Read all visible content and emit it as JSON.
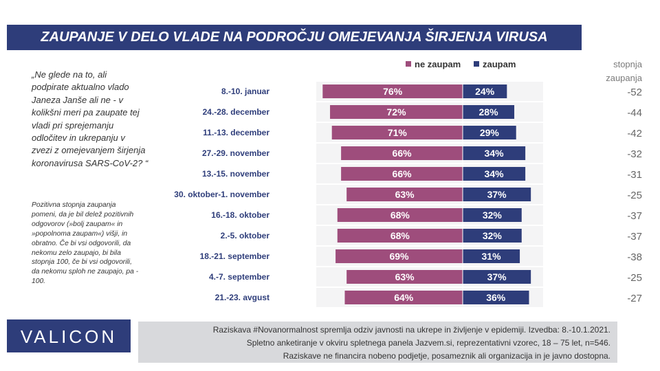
{
  "title": "ZAUPANJE V DELO VLADE NA PODROČJU OMEJEVANJA ŠIRJENJA VIRUSA",
  "index_header": [
    "stopnja",
    "zaupanja"
  ],
  "question_lines": [
    "„Ne glede na to, ali",
    "podpirate aktualno vlado",
    "Janeza Janše ali ne - v",
    "kolikšni meri pa zaupate tej",
    "vladi pri sprejemanju",
    "odločitev in ukrepanju v",
    "zvezi z omejevanjem širjenja",
    "koronavirusa SARS-CoV-2? “"
  ],
  "note_lines": [
    "Pozitivna stopnja zaupanja",
    "pomeni, da je bil delež pozitivnih",
    "odgovorov (»bolj zaupam« in",
    "»popolnoma zaupam«) višji, in",
    "obratno. Če bi vsi odgovorili, da",
    "nekomu zelo zaupajo, bi bila",
    "stopnja 100, če bi vsi odgovorili,",
    "da nekomu sploh ne zaupajo, pa -",
    "100."
  ],
  "logo": "VALICON",
  "footer": [
    "Raziskava #Novanormalnost spremlja odziv javnosti na ukrepe in življenje v epidemiji.  Izvedba: 8.-10.1.2021.",
    "Spletno anketiranje v okviru spletnega panela Jazvem.si, reprezentativni vzorec, 18 – 75 let, n=546.",
    "Raziskave ne financira nobeno podjetje, posameznik ali organizacija in je javno dostopna."
  ],
  "colors": {
    "ne_zaupam": "#9e4d7c",
    "zaupam": "#2e3d7a",
    "title_bg": "#2e3d7a",
    "footer_bg": "#d8d9dc"
  },
  "chart_data": {
    "type": "bar",
    "orientation": "horizontal-diverging",
    "categories": [
      "8.-10. januar",
      "24.-28. december",
      "11.-13. december",
      "27.-29. november",
      "13.-15. november",
      "30. oktober-1. november",
      "16.-18. oktober",
      "2.-5. oktober",
      "18.-21. september",
      "4.-7. september",
      "21.-23. avgust"
    ],
    "series": [
      {
        "name": "ne zaupam",
        "values": [
          76,
          72,
          71,
          66,
          66,
          63,
          68,
          68,
          69,
          63,
          64
        ],
        "labels": [
          "76%",
          "72%",
          "71%",
          "66%",
          "66%",
          "63%",
          "68%",
          "68%",
          "69%",
          "63%",
          "64%"
        ]
      },
      {
        "name": "zaupam",
        "values": [
          24,
          28,
          29,
          34,
          34,
          37,
          32,
          32,
          31,
          37,
          36
        ],
        "labels": [
          "24%",
          "28%",
          "29%",
          "34%",
          "34%",
          "37%",
          "32%",
          "32%",
          "31%",
          "37%",
          "36%"
        ]
      }
    ],
    "index_label": "stopnja zaupanja",
    "index_values": [
      "-52",
      "-44",
      "-42",
      "-32",
      "-31",
      "-25",
      "-37",
      "-37",
      "-38",
      "-25",
      "-27"
    ],
    "legend_position": "top"
  }
}
